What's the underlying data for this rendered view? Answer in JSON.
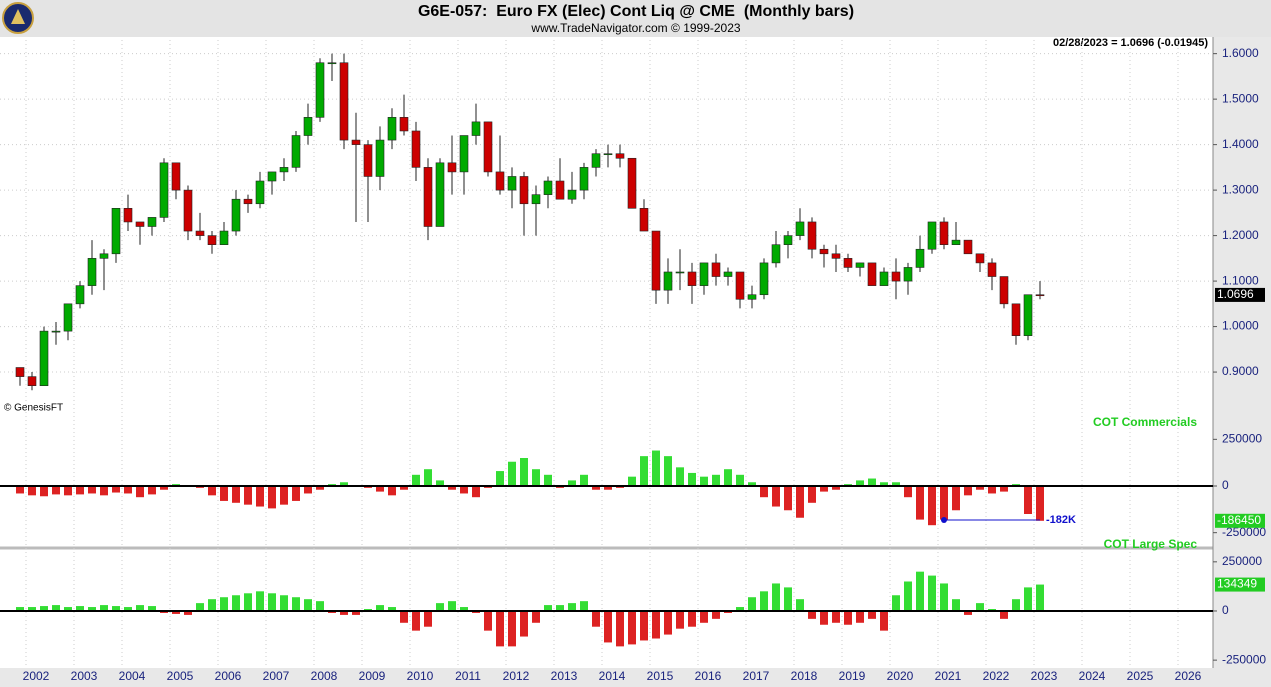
{
  "header": {
    "title": "G6E-057:  Euro FX (Elec) Cont Liq @ CME  (Monthly bars)",
    "subtitle": "www.TradeNavigator.com © 1999-2023",
    "status": "02/28/2023 = 1.0696 (-0.01945)",
    "watermark": "© GenesisFT"
  },
  "chart_data": [
    {
      "type": "candlestick",
      "categories": [
        null,
        "2002",
        null,
        null,
        null,
        "2003",
        null,
        null,
        null,
        "2004",
        null,
        null,
        null,
        "2005",
        null,
        null,
        null,
        "2006",
        null,
        null,
        null,
        "2007",
        null,
        null,
        null,
        "2008",
        null,
        null,
        null,
        "2009",
        null,
        null,
        null,
        "2010",
        null,
        null,
        null,
        "2011",
        null,
        null,
        null,
        "2012",
        null,
        null,
        null,
        "2013",
        null,
        null,
        null,
        "2014",
        null,
        null,
        null,
        "2015",
        null,
        null,
        null,
        "2016",
        null,
        null,
        null,
        "2017",
        null,
        null,
        null,
        "2018",
        null,
        null,
        null,
        "2019",
        null,
        null,
        null,
        "2020",
        null,
        null,
        null,
        "2021",
        null,
        null,
        null,
        "2022",
        null,
        null,
        null,
        "2023",
        null,
        null,
        null,
        "2024",
        null,
        null,
        null,
        "2025",
        null,
        null,
        null,
        "2026",
        null,
        null,
        null
      ],
      "open": [
        0.91,
        0.89,
        0.87,
        0.99,
        0.99,
        1.05,
        1.09,
        1.15,
        1.16,
        1.26,
        1.23,
        1.22,
        1.24,
        1.36,
        1.3,
        1.21,
        1.2,
        1.18,
        1.21,
        1.28,
        1.27,
        1.32,
        1.34,
        1.35,
        1.42,
        1.46,
        1.58,
        1.58,
        1.41,
        1.4,
        1.33,
        1.41,
        1.46,
        1.43,
        1.35,
        1.22,
        1.36,
        1.34,
        1.42,
        1.45,
        1.34,
        1.3,
        1.33,
        1.27,
        1.29,
        1.32,
        1.28,
        1.3,
        1.35,
        1.38,
        1.38,
        1.37,
        1.26,
        1.21,
        1.08,
        1.12,
        1.12,
        1.09,
        1.14,
        1.11,
        1.12,
        1.06,
        1.07,
        1.14,
        1.18,
        1.2,
        1.23,
        1.17,
        1.16,
        1.15,
        1.13,
        1.14,
        1.09,
        1.12,
        1.1,
        1.13,
        1.17,
        1.23,
        1.18,
        1.19,
        1.16,
        1.14,
        1.11,
        1.05,
        0.98,
        1.07,
        null,
        null,
        null,
        null,
        null,
        null,
        null,
        null,
        null,
        null,
        null,
        null,
        null,
        null,
        null
      ],
      "high": [
        0.91,
        0.9,
        1.0,
        1.01,
        1.05,
        1.1,
        1.19,
        1.17,
        1.26,
        1.29,
        1.23,
        1.24,
        1.37,
        1.36,
        1.31,
        1.25,
        1.21,
        1.23,
        1.3,
        1.29,
        1.34,
        1.34,
        1.37,
        1.43,
        1.49,
        1.59,
        1.6,
        1.6,
        1.47,
        1.41,
        1.44,
        1.48,
        1.51,
        1.45,
        1.37,
        1.37,
        1.42,
        1.42,
        1.49,
        1.45,
        1.42,
        1.35,
        1.34,
        1.31,
        1.33,
        1.37,
        1.34,
        1.36,
        1.39,
        1.4,
        1.4,
        1.37,
        1.28,
        1.21,
        1.15,
        1.17,
        1.14,
        1.14,
        1.16,
        1.13,
        1.12,
        1.09,
        1.15,
        1.21,
        1.21,
        1.26,
        1.24,
        1.18,
        1.18,
        1.16,
        1.14,
        1.14,
        1.13,
        1.15,
        1.14,
        1.2,
        1.23,
        1.24,
        1.23,
        1.19,
        1.16,
        1.15,
        1.11,
        1.05,
        1.07,
        1.1,
        null,
        null,
        null,
        null,
        null,
        null,
        null,
        null,
        null,
        null,
        null,
        null,
        null,
        null,
        null
      ],
      "low": [
        0.87,
        0.86,
        0.87,
        0.96,
        0.97,
        1.04,
        1.07,
        1.08,
        1.14,
        1.21,
        1.18,
        1.2,
        1.23,
        1.28,
        1.19,
        1.19,
        1.16,
        1.18,
        1.2,
        1.25,
        1.26,
        1.29,
        1.32,
        1.34,
        1.4,
        1.45,
        1.54,
        1.39,
        1.23,
        1.23,
        1.3,
        1.39,
        1.42,
        1.32,
        1.19,
        1.22,
        1.29,
        1.29,
        1.4,
        1.33,
        1.29,
        1.26,
        1.2,
        1.2,
        1.26,
        1.28,
        1.27,
        1.28,
        1.33,
        1.35,
        1.35,
        1.26,
        1.21,
        1.05,
        1.05,
        1.08,
        1.05,
        1.07,
        1.09,
        1.09,
        1.04,
        1.04,
        1.06,
        1.13,
        1.15,
        1.19,
        1.15,
        1.13,
        1.12,
        1.12,
        1.11,
        1.09,
        1.09,
        1.06,
        1.07,
        1.12,
        1.16,
        1.17,
        1.18,
        1.16,
        1.12,
        1.08,
        1.04,
        0.96,
        0.97,
        1.06,
        null,
        null,
        null,
        null,
        null,
        null,
        null,
        null,
        null,
        null,
        null,
        null,
        null,
        null,
        null
      ],
      "close": [
        0.89,
        0.87,
        0.99,
        0.99,
        1.05,
        1.09,
        1.15,
        1.16,
        1.26,
        1.23,
        1.22,
        1.24,
        1.36,
        1.3,
        1.21,
        1.2,
        1.18,
        1.21,
        1.28,
        1.27,
        1.32,
        1.34,
        1.35,
        1.42,
        1.46,
        1.58,
        1.58,
        1.41,
        1.4,
        1.33,
        1.41,
        1.46,
        1.43,
        1.35,
        1.22,
        1.36,
        1.34,
        1.42,
        1.45,
        1.34,
        1.3,
        1.33,
        1.27,
        1.29,
        1.32,
        1.28,
        1.3,
        1.35,
        1.38,
        1.38,
        1.37,
        1.26,
        1.21,
        1.08,
        1.12,
        1.12,
        1.09,
        1.14,
        1.11,
        1.12,
        1.06,
        1.07,
        1.14,
        1.18,
        1.2,
        1.23,
        1.17,
        1.16,
        1.15,
        1.13,
        1.14,
        1.09,
        1.12,
        1.1,
        1.13,
        1.17,
        1.23,
        1.18,
        1.19,
        1.16,
        1.14,
        1.11,
        1.05,
        0.98,
        1.07,
        1.0696,
        null,
        null,
        null,
        null,
        null,
        null,
        null,
        null,
        null,
        null,
        null,
        null,
        null,
        null,
        null
      ],
      "up_color": "#00aa00",
      "down_color": "#cc0000",
      "last_label": "1.0696",
      "ylim": [
        0.81,
        1.63
      ],
      "yticks": [
        {
          "value": 0.9,
          "label": "0.9000"
        },
        {
          "value": 1.0,
          "label": "1.0000"
        },
        {
          "value": 1.1,
          "label": "1.1000"
        },
        {
          "value": 1.2,
          "label": "1.2000"
        },
        {
          "value": 1.3,
          "label": "1.3000"
        },
        {
          "value": 1.4,
          "label": "1.4000"
        },
        {
          "value": 1.5,
          "label": "1.5000"
        },
        {
          "value": 1.6,
          "label": "1.6000"
        }
      ],
      "grid": true
    },
    {
      "type": "bar",
      "name": "COT Commercials",
      "pos_color": "#33dd33",
      "neg_color": "#dd2222",
      "last_label": "-186450",
      "values": [
        -40000,
        -50000,
        -55000,
        -45000,
        -50000,
        -45000,
        -40000,
        -50000,
        -35000,
        -40000,
        -60000,
        -45000,
        -20000,
        10000,
        -5000,
        -10000,
        -50000,
        -80000,
        -90000,
        -100000,
        -110000,
        -120000,
        -100000,
        -80000,
        -40000,
        -20000,
        10000,
        20000,
        -5000,
        -10000,
        -30000,
        -50000,
        -20000,
        60000,
        90000,
        30000,
        -20000,
        -40000,
        -60000,
        -10000,
        80000,
        130000,
        150000,
        90000,
        60000,
        -10000,
        30000,
        60000,
        -20000,
        -20000,
        -10000,
        50000,
        160000,
        190000,
        160000,
        100000,
        70000,
        50000,
        60000,
        90000,
        60000,
        20000,
        -60000,
        -110000,
        -130000,
        -170000,
        -90000,
        -30000,
        -20000,
        10000,
        30000,
        40000,
        20000,
        20000,
        -60000,
        -180000,
        -210000,
        -180000,
        -130000,
        -50000,
        -20000,
        -40000,
        -30000,
        10000,
        -150000,
        -186450,
        null,
        null,
        null,
        null,
        null,
        null,
        null,
        null,
        null,
        null,
        null,
        null,
        null,
        null,
        null
      ],
      "annotation": {
        "label": "-182K",
        "value": -182000
      },
      "ylim": [
        -300000,
        300000
      ],
      "yticks": [
        250000,
        0,
        -250000
      ]
    },
    {
      "type": "bar",
      "name": "COT Large Spec",
      "pos_color": "#33dd33",
      "neg_color": "#dd2222",
      "last_label": "134349",
      "values": [
        20000,
        20000,
        25000,
        30000,
        20000,
        25000,
        20000,
        30000,
        25000,
        20000,
        30000,
        25000,
        -10000,
        -15000,
        -20000,
        40000,
        60000,
        70000,
        80000,
        90000,
        100000,
        90000,
        80000,
        70000,
        60000,
        50000,
        -10000,
        -20000,
        -20000,
        10000,
        30000,
        20000,
        -60000,
        -100000,
        -80000,
        40000,
        50000,
        20000,
        -10000,
        -100000,
        -180000,
        -180000,
        -130000,
        -60000,
        30000,
        30000,
        40000,
        50000,
        -80000,
        -160000,
        -180000,
        -170000,
        -150000,
        -140000,
        -120000,
        -90000,
        -80000,
        -60000,
        -40000,
        -10000,
        20000,
        70000,
        100000,
        140000,
        120000,
        60000,
        -40000,
        -70000,
        -60000,
        -70000,
        -60000,
        -40000,
        -100000,
        80000,
        150000,
        200000,
        180000,
        140000,
        60000,
        -20000,
        40000,
        10000,
        -40000,
        60000,
        120000,
        134349,
        null,
        null,
        null,
        null,
        null,
        null,
        null,
        null,
        null,
        null,
        null,
        null,
        null,
        null,
        null
      ],
      "ylim": [
        -290000,
        300000
      ],
      "yticks": [
        250000,
        0,
        -250000
      ]
    }
  ]
}
